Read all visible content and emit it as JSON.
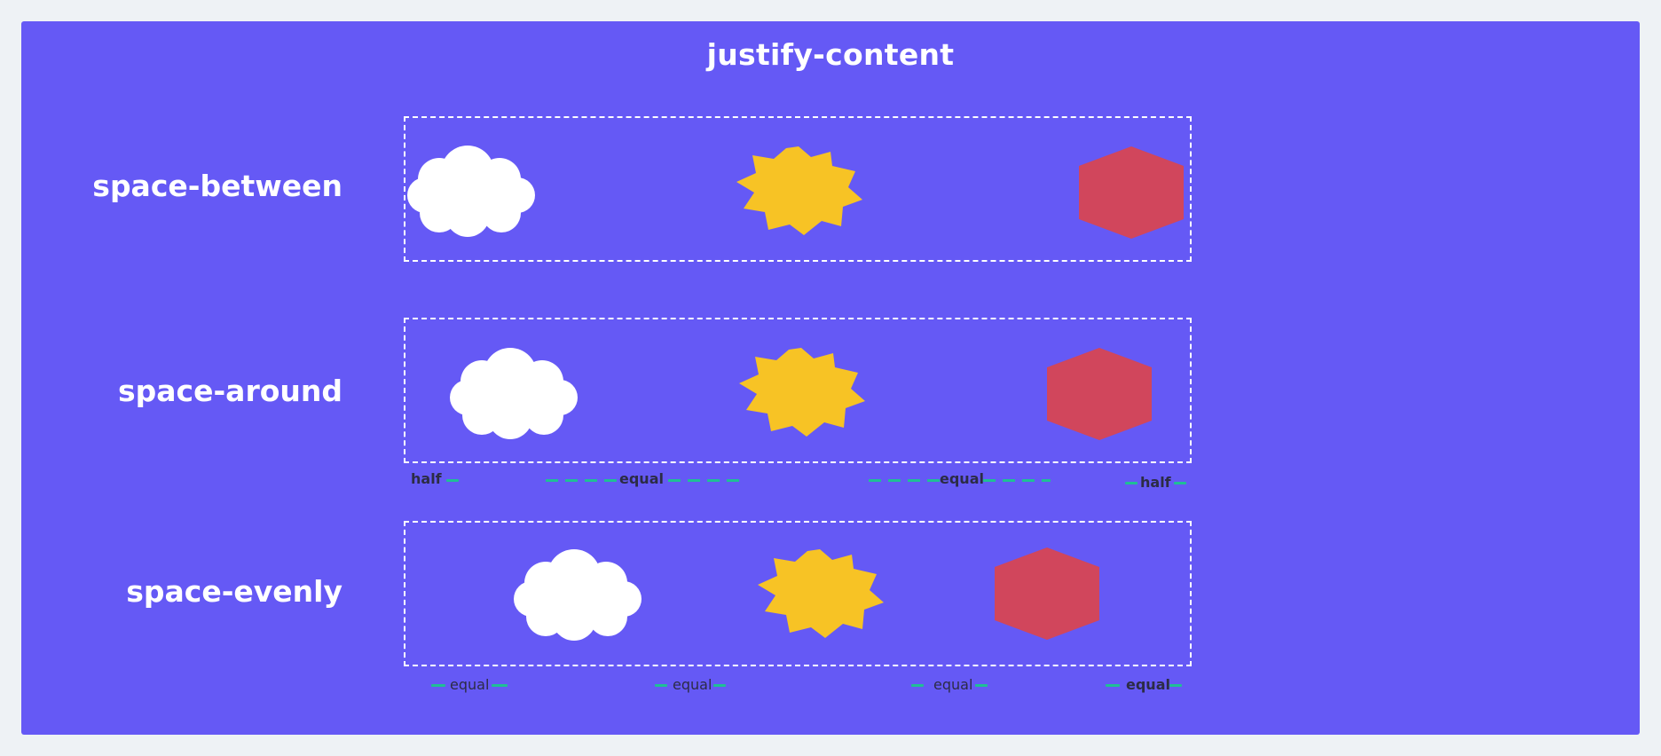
{
  "title": "justify-content",
  "rows": [
    {
      "label": "space-between"
    },
    {
      "label": "space-around"
    },
    {
      "label": "space-evenly"
    }
  ],
  "shapes": [
    "cloud-icon",
    "starburst-icon",
    "hexagon-icon"
  ],
  "colors": {
    "panel_bg": "#6559f5",
    "cloud": "#ffffff",
    "starburst": "#f7c325",
    "hexagon": "#d1465c",
    "annotation_line": "#1fbf95"
  },
  "annotations": {
    "around": {
      "half_left": "half",
      "equal_1": "equal",
      "equal_2": "equal",
      "half_right": "half"
    },
    "evenly": {
      "equal_1": "equal",
      "equal_2": "equal",
      "equal_3": "equal",
      "equal_4": "equal"
    }
  }
}
